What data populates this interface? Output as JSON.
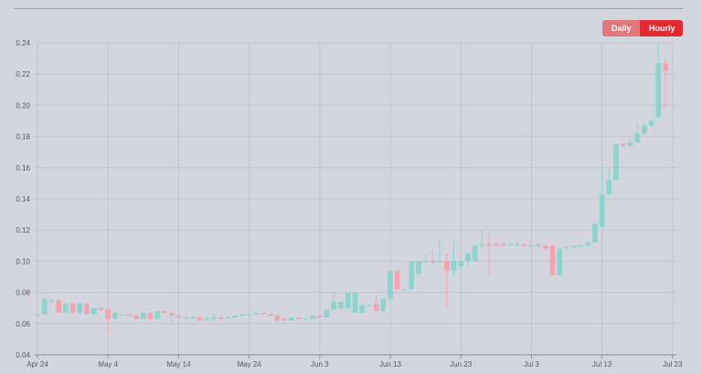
{
  "range_toggle": {
    "daily_label": "Daily",
    "hourly_label": "Hourly",
    "selected": "Hourly"
  },
  "colors": {
    "up": "#8fd3d0",
    "down": "#f2a5b0",
    "grid": "#c3c6cc",
    "axis_text": "#555a63"
  },
  "chart_data": {
    "type": "candlestick",
    "title": "",
    "xlabel": "",
    "ylabel": "",
    "ylim": [
      0.04,
      0.24
    ],
    "yticks": [
      "0.04",
      "0.06",
      "0.08",
      "0.10",
      "0.12",
      "0.14",
      "0.16",
      "0.18",
      "0.20",
      "0.22",
      "0.24"
    ],
    "xticks": [
      "Apr 24",
      "May 4",
      "May 14",
      "May 24",
      "Jun 3",
      "Jun 13",
      "Jun 23",
      "Jul 3",
      "Jul 13",
      "Jul 23"
    ],
    "grid": true,
    "candles": [
      {
        "date": "Apr 24",
        "open": 0.066,
        "high": 0.067,
        "low": 0.066,
        "close": 0.066
      },
      {
        "date": "Apr 25",
        "open": 0.066,
        "high": 0.076,
        "low": 0.066,
        "close": 0.076
      },
      {
        "date": "Apr 26",
        "open": 0.075,
        "high": 0.076,
        "low": 0.073,
        "close": 0.075
      },
      {
        "date": "Apr 27",
        "open": 0.075,
        "high": 0.076,
        "low": 0.067,
        "close": 0.067
      },
      {
        "date": "Apr 28",
        "open": 0.067,
        "high": 0.073,
        "low": 0.066,
        "close": 0.073
      },
      {
        "date": "Apr 29",
        "open": 0.073,
        "high": 0.073,
        "low": 0.066,
        "close": 0.067
      },
      {
        "date": "Apr 30",
        "open": 0.067,
        "high": 0.073,
        "low": 0.066,
        "close": 0.073
      },
      {
        "date": "May 1",
        "open": 0.073,
        "high": 0.073,
        "low": 0.066,
        "close": 0.066
      },
      {
        "date": "May 2",
        "open": 0.066,
        "high": 0.07,
        "low": 0.066,
        "close": 0.07
      },
      {
        "date": "May 3",
        "open": 0.07,
        "high": 0.07,
        "low": 0.068,
        "close": 0.069
      },
      {
        "date": "May 4",
        "open": 0.069,
        "high": 0.07,
        "low": 0.054,
        "close": 0.063
      },
      {
        "date": "May 5",
        "open": 0.063,
        "high": 0.068,
        "low": 0.063,
        "close": 0.067
      },
      {
        "date": "May 6",
        "open": 0.066,
        "high": 0.066,
        "low": 0.066,
        "close": 0.066
      },
      {
        "date": "May 7",
        "open": 0.066,
        "high": 0.066,
        "low": 0.065,
        "close": 0.065
      },
      {
        "date": "May 8",
        "open": 0.065,
        "high": 0.066,
        "low": 0.063,
        "close": 0.063
      },
      {
        "date": "May 9",
        "open": 0.063,
        "high": 0.067,
        "low": 0.063,
        "close": 0.067
      },
      {
        "date": "May 10",
        "open": 0.067,
        "high": 0.067,
        "low": 0.062,
        "close": 0.063
      },
      {
        "date": "May 11",
        "open": 0.063,
        "high": 0.068,
        "low": 0.063,
        "close": 0.068
      },
      {
        "date": "May 12",
        "open": 0.068,
        "high": 0.068,
        "low": 0.066,
        "close": 0.067
      },
      {
        "date": "May 13",
        "open": 0.067,
        "high": 0.067,
        "low": 0.061,
        "close": 0.065
      },
      {
        "date": "May 14",
        "open": 0.065,
        "high": 0.066,
        "low": 0.063,
        "close": 0.064
      },
      {
        "date": "May 15",
        "open": 0.064,
        "high": 0.065,
        "low": 0.063,
        "close": 0.064
      },
      {
        "date": "May 16",
        "open": 0.064,
        "high": 0.065,
        "low": 0.064,
        "close": 0.064
      },
      {
        "date": "May 17",
        "open": 0.064,
        "high": 0.065,
        "low": 0.061,
        "close": 0.062
      },
      {
        "date": "May 18",
        "open": 0.062,
        "high": 0.064,
        "low": 0.062,
        "close": 0.063
      },
      {
        "date": "May 19",
        "open": 0.063,
        "high": 0.067,
        "low": 0.061,
        "close": 0.064
      },
      {
        "date": "May 20",
        "open": 0.064,
        "high": 0.065,
        "low": 0.062,
        "close": 0.063
      },
      {
        "date": "May 21",
        "open": 0.064,
        "high": 0.065,
        "low": 0.064,
        "close": 0.064
      },
      {
        "date": "May 22",
        "open": 0.064,
        "high": 0.065,
        "low": 0.064,
        "close": 0.065
      },
      {
        "date": "May 23",
        "open": 0.065,
        "high": 0.066,
        "low": 0.065,
        "close": 0.066
      },
      {
        "date": "May 24",
        "open": 0.066,
        "high": 0.066,
        "low": 0.065,
        "close": 0.066
      },
      {
        "date": "May 25",
        "open": 0.066,
        "high": 0.067,
        "low": 0.066,
        "close": 0.067
      },
      {
        "date": "May 26",
        "open": 0.067,
        "high": 0.067,
        "low": 0.066,
        "close": 0.066
      },
      {
        "date": "May 27",
        "open": 0.066,
        "high": 0.066,
        "low": 0.065,
        "close": 0.065
      },
      {
        "date": "May 28",
        "open": 0.065,
        "high": 0.066,
        "low": 0.061,
        "close": 0.062
      },
      {
        "date": "May 29",
        "open": 0.063,
        "high": 0.064,
        "low": 0.062,
        "close": 0.062
      },
      {
        "date": "May 30",
        "open": 0.062,
        "high": 0.064,
        "low": 0.062,
        "close": 0.064
      },
      {
        "date": "May 31",
        "open": 0.064,
        "high": 0.064,
        "low": 0.063,
        "close": 0.063
      },
      {
        "date": "Jun 1",
        "open": 0.063,
        "high": 0.064,
        "low": 0.063,
        "close": 0.063
      },
      {
        "date": "Jun 2",
        "open": 0.063,
        "high": 0.065,
        "low": 0.063,
        "close": 0.065
      },
      {
        "date": "Jun 3",
        "open": 0.065,
        "high": 0.065,
        "low": 0.063,
        "close": 0.064
      },
      {
        "date": "Jun 4",
        "open": 0.064,
        "high": 0.069,
        "low": 0.064,
        "close": 0.069
      },
      {
        "date": "Jun 5",
        "open": 0.069,
        "high": 0.08,
        "low": 0.069,
        "close": 0.074
      },
      {
        "date": "Jun 6",
        "open": 0.07,
        "high": 0.074,
        "low": 0.069,
        "close": 0.074
      },
      {
        "date": "Jun 7",
        "open": 0.07,
        "high": 0.08,
        "low": 0.069,
        "close": 0.08
      },
      {
        "date": "Jun 8",
        "open": 0.067,
        "high": 0.08,
        "low": 0.067,
        "close": 0.08
      },
      {
        "date": "Jun 9",
        "open": 0.067,
        "high": 0.072,
        "low": 0.067,
        "close": 0.072
      },
      {
        "date": "Jun 10",
        "open": 0.072,
        "high": 0.073,
        "low": 0.071,
        "close": 0.072
      },
      {
        "date": "Jun 11",
        "open": 0.073,
        "high": 0.078,
        "low": 0.068,
        "close": 0.068
      },
      {
        "date": "Jun 12",
        "open": 0.068,
        "high": 0.076,
        "low": 0.068,
        "close": 0.076
      },
      {
        "date": "Jun 13",
        "open": 0.076,
        "high": 0.094,
        "low": 0.076,
        "close": 0.094
      },
      {
        "date": "Jun 14",
        "open": 0.094,
        "high": 0.095,
        "low": 0.082,
        "close": 0.082
      },
      {
        "date": "Jun 15",
        "open": 0.082,
        "high": 0.082,
        "low": 0.082,
        "close": 0.082
      },
      {
        "date": "Jun 16",
        "open": 0.082,
        "high": 0.1,
        "low": 0.082,
        "close": 0.1
      },
      {
        "date": "Jun 17",
        "open": 0.092,
        "high": 0.1,
        "low": 0.09,
        "close": 0.1
      },
      {
        "date": "Jun 18",
        "open": 0.1,
        "high": 0.105,
        "low": 0.099,
        "close": 0.1
      },
      {
        "date": "Jun 19",
        "open": 0.1,
        "high": 0.107,
        "low": 0.098,
        "close": 0.099
      },
      {
        "date": "Jun 20",
        "open": 0.099,
        "high": 0.113,
        "low": 0.099,
        "close": 0.1
      },
      {
        "date": "Jun 21",
        "open": 0.1,
        "high": 0.105,
        "low": 0.071,
        "close": 0.094
      },
      {
        "date": "Jun 22",
        "open": 0.094,
        "high": 0.113,
        "low": 0.09,
        "close": 0.1
      },
      {
        "date": "Jun 23",
        "open": 0.097,
        "high": 0.102,
        "low": 0.094,
        "close": 0.1
      },
      {
        "date": "Jun 24",
        "open": 0.1,
        "high": 0.105,
        "low": 0.096,
        "close": 0.105
      },
      {
        "date": "Jun 25",
        "open": 0.1,
        "high": 0.111,
        "low": 0.1,
        "close": 0.11
      },
      {
        "date": "Jun 26",
        "open": 0.11,
        "high": 0.12,
        "low": 0.108,
        "close": 0.111
      },
      {
        "date": "Jun 27",
        "open": 0.111,
        "high": 0.119,
        "low": 0.091,
        "close": 0.11
      },
      {
        "date": "Jun 28",
        "open": 0.111,
        "high": 0.112,
        "low": 0.11,
        "close": 0.11
      },
      {
        "date": "Jun 29",
        "open": 0.111,
        "high": 0.112,
        "low": 0.11,
        "close": 0.11
      },
      {
        "date": "Jun 30",
        "open": 0.111,
        "high": 0.112,
        "low": 0.11,
        "close": 0.111
      },
      {
        "date": "Jul 1",
        "open": 0.111,
        "high": 0.112,
        "low": 0.11,
        "close": 0.111
      },
      {
        "date": "Jul 2",
        "open": 0.111,
        "high": 0.111,
        "low": 0.109,
        "close": 0.11
      },
      {
        "date": "Jul 3",
        "open": 0.11,
        "high": 0.111,
        "low": 0.109,
        "close": 0.11
      },
      {
        "date": "Jul 4",
        "open": 0.11,
        "high": 0.111,
        "low": 0.108,
        "close": 0.111
      },
      {
        "date": "Jul 5",
        "open": 0.11,
        "high": 0.111,
        "low": 0.108,
        "close": 0.108
      },
      {
        "date": "Jul 6",
        "open": 0.11,
        "high": 0.111,
        "low": 0.091,
        "close": 0.091
      },
      {
        "date": "Jul 7",
        "open": 0.091,
        "high": 0.109,
        "low": 0.091,
        "close": 0.108
      },
      {
        "date": "Jul 8",
        "open": 0.108,
        "high": 0.11,
        "low": 0.108,
        "close": 0.109
      },
      {
        "date": "Jul 9",
        "open": 0.109,
        "high": 0.11,
        "low": 0.108,
        "close": 0.11
      },
      {
        "date": "Jul 10",
        "open": 0.11,
        "high": 0.111,
        "low": 0.109,
        "close": 0.11
      },
      {
        "date": "Jul 11",
        "open": 0.11,
        "high": 0.113,
        "low": 0.109,
        "close": 0.112
      },
      {
        "date": "Jul 12",
        "open": 0.112,
        "high": 0.124,
        "low": 0.112,
        "close": 0.124
      },
      {
        "date": "Jul 13",
        "open": 0.122,
        "high": 0.16,
        "low": 0.122,
        "close": 0.143
      },
      {
        "date": "Jul 14",
        "open": 0.143,
        "high": 0.16,
        "low": 0.142,
        "close": 0.152
      },
      {
        "date": "Jul 15",
        "open": 0.152,
        "high": 0.175,
        "low": 0.152,
        "close": 0.175
      },
      {
        "date": "Jul 16",
        "open": 0.175,
        "high": 0.176,
        "low": 0.173,
        "close": 0.174
      },
      {
        "date": "Jul 17",
        "open": 0.174,
        "high": 0.178,
        "low": 0.173,
        "close": 0.176
      },
      {
        "date": "Jul 18",
        "open": 0.176,
        "high": 0.188,
        "low": 0.176,
        "close": 0.182
      },
      {
        "date": "Jul 19",
        "open": 0.182,
        "high": 0.19,
        "low": 0.181,
        "close": 0.187
      },
      {
        "date": "Jul 20",
        "open": 0.187,
        "high": 0.191,
        "low": 0.186,
        "close": 0.19
      },
      {
        "date": "Jul 21",
        "open": 0.192,
        "high": 0.24,
        "low": 0.191,
        "close": 0.227
      },
      {
        "date": "Jul 22",
        "open": 0.227,
        "high": 0.23,
        "low": 0.198,
        "close": 0.222
      }
    ]
  }
}
